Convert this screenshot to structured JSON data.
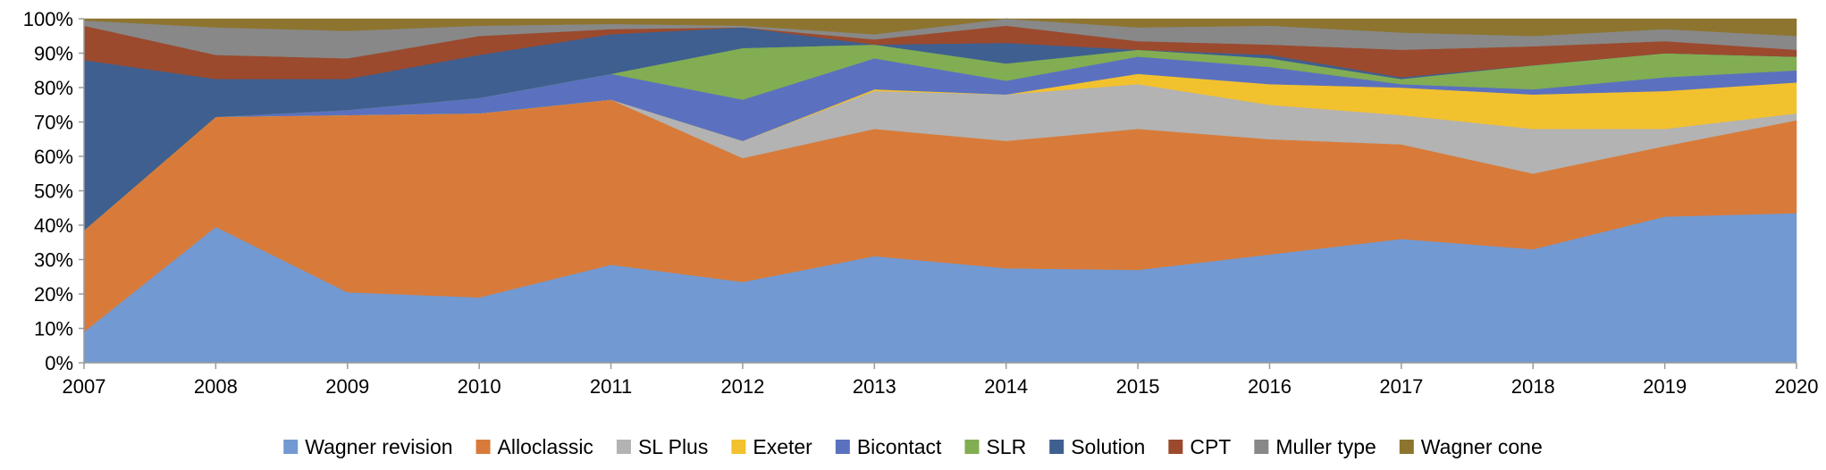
{
  "chart_data": {
    "type": "area",
    "stacked": true,
    "normalized_percent": true,
    "title": "",
    "xlabel": "",
    "ylabel": "",
    "x": [
      2007,
      2008,
      2009,
      2010,
      2011,
      2012,
      2013,
      2014,
      2015,
      2016,
      2017,
      2018,
      2019,
      2020
    ],
    "ylim": [
      0,
      100
    ],
    "y_ticks": [
      "0%",
      "10%",
      "20%",
      "30%",
      "40%",
      "50%",
      "60%",
      "70%",
      "80%",
      "90%",
      "100%"
    ],
    "grid": false,
    "legend_position": "bottom",
    "series": [
      {
        "name": "Wagner revision",
        "color": "#7299D1",
        "values": [
          9,
          39.5,
          20.5,
          19,
          28.5,
          23.5,
          31,
          27.5,
          27,
          31.5,
          36,
          33,
          42.5,
          43.5
        ]
      },
      {
        "name": "Alloclassic",
        "color": "#D87B3A",
        "values": [
          29.5,
          32,
          51.5,
          53.5,
          48,
          36,
          37,
          37,
          41,
          33.5,
          27.5,
          22,
          20.5,
          27
        ]
      },
      {
        "name": "SL Plus",
        "color": "#B3B3B3",
        "values": [
          0,
          0,
          0,
          0,
          0,
          5,
          11,
          13.5,
          13,
          10,
          8.5,
          13,
          5,
          2
        ]
      },
      {
        "name": "Exeter",
        "color": "#F2C12E",
        "values": [
          0,
          0,
          0,
          0,
          0,
          0,
          0.5,
          0,
          3,
          6,
          8,
          10,
          11,
          9
        ]
      },
      {
        "name": "Bicontact",
        "color": "#5B71BF",
        "values": [
          0,
          0,
          1.5,
          4.5,
          7.5,
          12,
          9,
          4,
          5,
          5,
          1,
          1.5,
          4,
          3.5
        ]
      },
      {
        "name": "SLR",
        "color": "#82AD53",
        "values": [
          0,
          0,
          0,
          0,
          0,
          15,
          4,
          5,
          2,
          2.5,
          1.5,
          7,
          7,
          4
        ]
      },
      {
        "name": "Solution",
        "color": "#3E5F90",
        "values": [
          49.5,
          11,
          9,
          12.5,
          11.5,
          6,
          0,
          6,
          0,
          1,
          0.5,
          0,
          0,
          0
        ]
      },
      {
        "name": "CPT",
        "color": "#9B4A2E",
        "values": [
          10,
          7,
          6,
          5.5,
          1.5,
          0,
          1.5,
          5,
          2.5,
          3,
          8,
          5.5,
          3.5,
          2
        ]
      },
      {
        "name": "Muller type",
        "color": "#888888",
        "values": [
          1.5,
          8,
          8,
          3,
          1.5,
          0.5,
          1.5,
          2,
          4,
          5.5,
          5,
          3,
          3.5,
          4
        ]
      },
      {
        "name": "Wagner cone",
        "color": "#8D7530",
        "values": [
          0.5,
          2.5,
          3.5,
          2,
          1.5,
          2,
          4.5,
          0,
          2.5,
          2,
          4,
          5,
          3,
          5
        ]
      }
    ]
  }
}
